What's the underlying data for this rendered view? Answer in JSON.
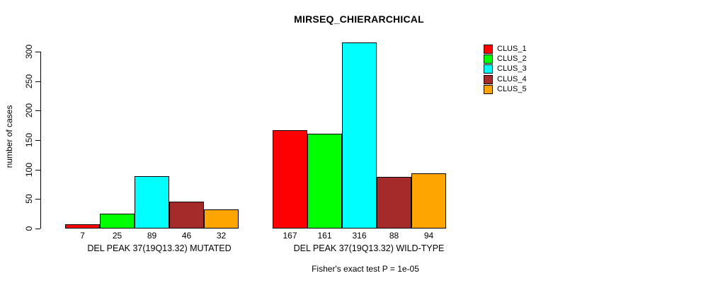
{
  "window": {
    "background": "#ffffff"
  },
  "chart_data": {
    "type": "bar",
    "title": "MIRSEQ_CHIERARCHICAL",
    "ylabel": "number of cases",
    "xlabel": "",
    "ylim": [
      0,
      320
    ],
    "yticks": [
      0,
      50,
      100,
      150,
      200,
      250,
      300
    ],
    "grid": false,
    "legend_position": "top-right",
    "series_names": [
      "CLUS_1",
      "CLUS_2",
      "CLUS_3",
      "CLUS_4",
      "CLUS_5"
    ],
    "series_colors": [
      "#FF0000",
      "#00FF00",
      "#00FFFF",
      "#A52A2A",
      "#FFA500"
    ],
    "bar_border_color": "#000000",
    "groups": [
      {
        "label": "DEL PEAK 37(19Q13.32) MUTATED",
        "values": [
          7,
          25,
          89,
          46,
          32
        ]
      },
      {
        "label": "DEL PEAK 37(19Q13.32) WILD-TYPE",
        "values": [
          167,
          161,
          316,
          88,
          94
        ]
      }
    ],
    "annotation": "Fisher's exact test P = 1e-05"
  }
}
